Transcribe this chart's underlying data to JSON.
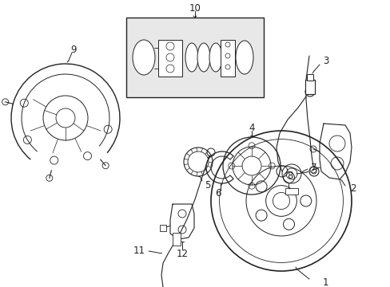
{
  "background_color": "#ffffff",
  "figsize": [
    4.89,
    3.6
  ],
  "dpi": 100,
  "line_color": "#222222",
  "text_color": "#222222",
  "box_fill": "#e8e8e8",
  "label_fontsize": 8.5
}
